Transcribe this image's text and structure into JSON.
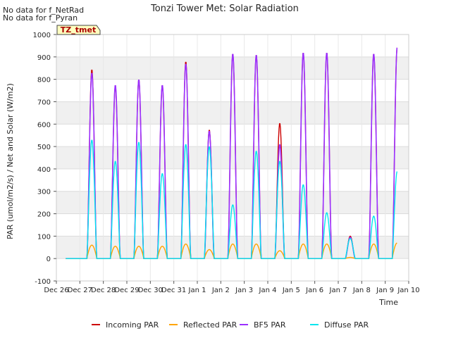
{
  "chart_data": {
    "type": "line",
    "title": "Tonzi Tower Met: Solar Radiation",
    "xlabel": "Time",
    "ylabel": "PAR (umol/m2/s) / Net and Solar (W/m2)",
    "ylim": [
      -100,
      1000
    ],
    "xlim": [
      0,
      15
    ],
    "yticks": [
      -100,
      0,
      100,
      200,
      300,
      400,
      500,
      600,
      700,
      800,
      900,
      1000
    ],
    "ytick_labels": [
      "-100",
      "0",
      "100",
      "200",
      "300",
      "400",
      "500",
      "600",
      "700",
      "800",
      "900",
      "1000"
    ],
    "xticks": [
      0,
      1,
      2,
      3,
      4,
      5,
      6,
      7,
      8,
      9,
      10,
      11,
      12,
      13,
      14,
      15
    ],
    "xtick_labels": [
      "Dec 26",
      "Dec 27",
      "Dec 28",
      "Dec 29",
      "Dec 30",
      "Dec 31",
      "Jan 1",
      "Jan 2",
      "Jan 3",
      "Jan 4",
      "Jan 5",
      "Jan 6",
      "Jan 7",
      "Jan 8",
      "Jan 9",
      "Jan 10"
    ],
    "notes": [
      "No data for f_NetRad",
      "No data for f_Pyran"
    ],
    "annotation_box": "TZ_tmet",
    "legend_position": "bottom-center",
    "day_peaks": [
      {
        "day": "Dec 27",
        "incoming": 845,
        "bf5": 830,
        "reflected": 60,
        "diffuse": 530
      },
      {
        "day": "Dec 28",
        "incoming": 770,
        "bf5": 775,
        "reflected": 55,
        "diffuse": 435
      },
      {
        "day": "Dec 29",
        "incoming": 800,
        "bf5": 800,
        "reflected": 55,
        "diffuse": 520
      },
      {
        "day": "Dec 30",
        "incoming": 775,
        "bf5": 775,
        "reflected": 55,
        "diffuse": 380
      },
      {
        "day": "Dec 31",
        "incoming": 880,
        "bf5": 870,
        "reflected": 65,
        "diffuse": 510
      },
      {
        "day": "Jan 1",
        "incoming": 575,
        "bf5": 570,
        "reflected": 40,
        "diffuse": 500
      },
      {
        "day": "Jan 2",
        "incoming": 915,
        "bf5": 915,
        "reflected": 65,
        "diffuse": 240
      },
      {
        "day": "Jan 3",
        "incoming": 910,
        "bf5": 910,
        "reflected": 65,
        "diffuse": 480
      },
      {
        "day": "Jan 4",
        "incoming": 605,
        "bf5": 510,
        "reflected": 35,
        "diffuse": 435
      },
      {
        "day": "Jan 5",
        "incoming": 920,
        "bf5": 920,
        "reflected": 65,
        "diffuse": 330
      },
      {
        "day": "Jan 6",
        "incoming": 920,
        "bf5": 920,
        "reflected": 65,
        "diffuse": 205
      },
      {
        "day": "Jan 7",
        "incoming": 100,
        "bf5": 95,
        "reflected": 5,
        "diffuse": 90
      },
      {
        "day": "Jan 8",
        "incoming": 915,
        "bf5": 915,
        "reflected": 65,
        "diffuse": 190
      },
      {
        "day": "Jan 9",
        "incoming": 945,
        "bf5": 945,
        "reflected": 70,
        "diffuse": 390
      }
    ],
    "series": [
      {
        "name": "Incoming PAR",
        "color": "#cc0000"
      },
      {
        "name": "Reflected PAR",
        "color": "#ffa500"
      },
      {
        "name": "BF5 PAR",
        "color": "#9b30ff"
      },
      {
        "name": "Diffuse PAR",
        "color": "#00e5ee"
      }
    ]
  }
}
